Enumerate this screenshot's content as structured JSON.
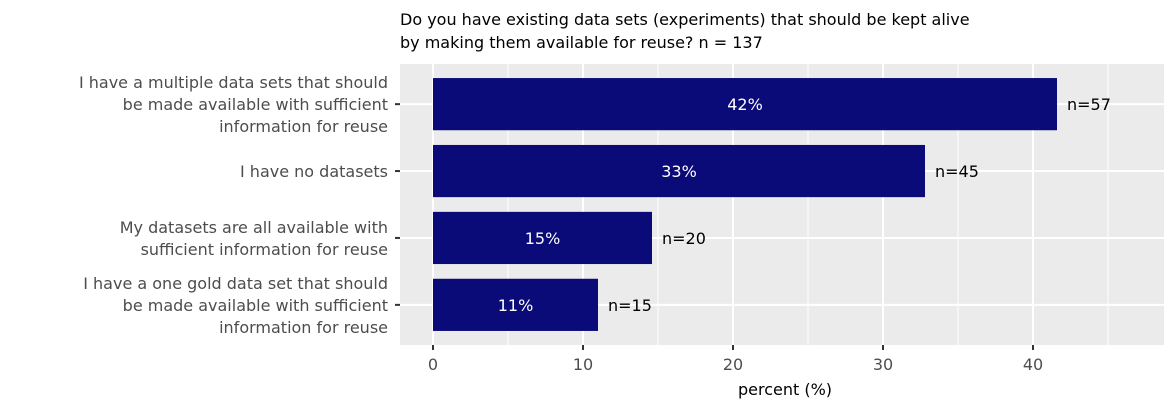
{
  "chart_data": {
    "type": "bar",
    "orientation": "horizontal",
    "title_lines": [
      "Do you have existing data sets (experiments) that should be kept alive",
      "by making them available for reuse? n = 137"
    ],
    "xlabel": "percent (%)",
    "ylabel": "",
    "xlim": [
      0,
      47
    ],
    "xticks": [
      0,
      10,
      20,
      30,
      40
    ],
    "grid": true,
    "bar_color": "#0a0a78",
    "panel_color": "#ebebeb",
    "categories": [
      {
        "label_lines": [
          "I have a multiple data sets that should",
          "be made available with sufficient",
          "information for reuse"
        ],
        "value": 41.6,
        "pct_label": "42%",
        "n_label": "n=57"
      },
      {
        "label_lines": [
          "I have no datasets"
        ],
        "value": 32.8,
        "pct_label": "33%",
        "n_label": "n=45"
      },
      {
        "label_lines": [
          "My datasets are all available with",
          "sufficient information for reuse"
        ],
        "value": 14.6,
        "pct_label": "15%",
        "n_label": "n=20"
      },
      {
        "label_lines": [
          "I have a one gold data set that should",
          "be made available with sufficient",
          "information for reuse"
        ],
        "value": 11.0,
        "pct_label": "11%",
        "n_label": "n=15"
      }
    ]
  }
}
